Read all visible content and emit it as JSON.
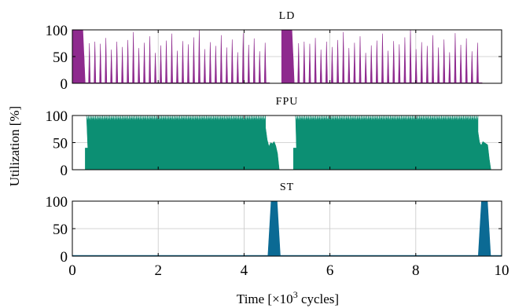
{
  "chart_data": {
    "type": "area",
    "ylabel": "Utilization [%]",
    "xlabel_parts": {
      "prefix": "Time [×10",
      "sup": "3",
      "suffix": " cycles]"
    },
    "xlim": [
      0,
      10
    ],
    "xticks": [
      0,
      2,
      4,
      6,
      8,
      10
    ],
    "grid": true,
    "panels": [
      {
        "title": "LD",
        "color": "#8e2a8e",
        "ylim": [
          0,
          100
        ],
        "yticks": [
          0,
          50,
          100
        ],
        "pattern": "spikes",
        "bursts": [
          {
            "x_start": 0.0,
            "x_end": 0.25,
            "value": 100
          },
          {
            "x_start": 4.87,
            "x_end": 5.12,
            "value": 100
          }
        ],
        "spike_heights_segment1": [
          55,
          75,
          78,
          74,
          85,
          63,
          78,
          68,
          81,
          96,
          66,
          76,
          88,
          57,
          71,
          80,
          93,
          61,
          79,
          73,
          86,
          100,
          64,
          77,
          70,
          90,
          67,
          82,
          58,
          94,
          72,
          84,
          60,
          76
        ],
        "spike_heights_segment2": [
          55,
          75,
          78,
          74,
          85,
          63,
          78,
          68,
          81,
          96,
          66,
          76,
          88,
          57,
          71,
          80,
          93,
          61,
          79,
          73,
          86,
          100,
          64,
          77,
          70,
          90,
          67,
          82,
          58,
          94,
          72,
          84,
          60,
          76
        ],
        "segments": [
          {
            "x_start": 0.25,
            "x_end": 4.6
          },
          {
            "x_start": 5.12,
            "x_end": 9.55
          }
        ]
      },
      {
        "title": "FPU",
        "color": "#0c8f73",
        "ylim": [
          0,
          100
        ],
        "yticks": [
          0,
          50,
          100
        ],
        "pattern": "dense",
        "segments": [
          {
            "x_start": 0.33,
            "x_end": 4.5,
            "low": 90,
            "high": 100,
            "ramp_x": [
              0.3,
              0.36
            ],
            "ramp_value": 40
          },
          {
            "x_start": 5.2,
            "x_end": 9.45,
            "low": 90,
            "high": 100,
            "ramp_x": [
              5.15,
              5.22
            ],
            "ramp_value": 40
          }
        ],
        "tails": [
          {
            "x_start": 4.5,
            "x_end": 4.82,
            "values": [
              78,
              55,
              43,
              50,
              48,
              52,
              44,
              30,
              0
            ]
          },
          {
            "x_start": 9.45,
            "x_end": 9.75,
            "values": [
              70,
              50,
              45,
              52,
              50,
              48,
              46,
              20,
              0
            ]
          }
        ]
      },
      {
        "title": "ST",
        "color": "#0b6a94",
        "ylim": [
          0,
          100
        ],
        "yticks": [
          0,
          50,
          100
        ],
        "pattern": "bursts",
        "bursts": [
          {
            "x_start": 4.55,
            "x_end": 4.85,
            "value": 100
          },
          {
            "x_start": 9.45,
            "x_end": 9.75,
            "value": 100
          }
        ]
      }
    ]
  }
}
